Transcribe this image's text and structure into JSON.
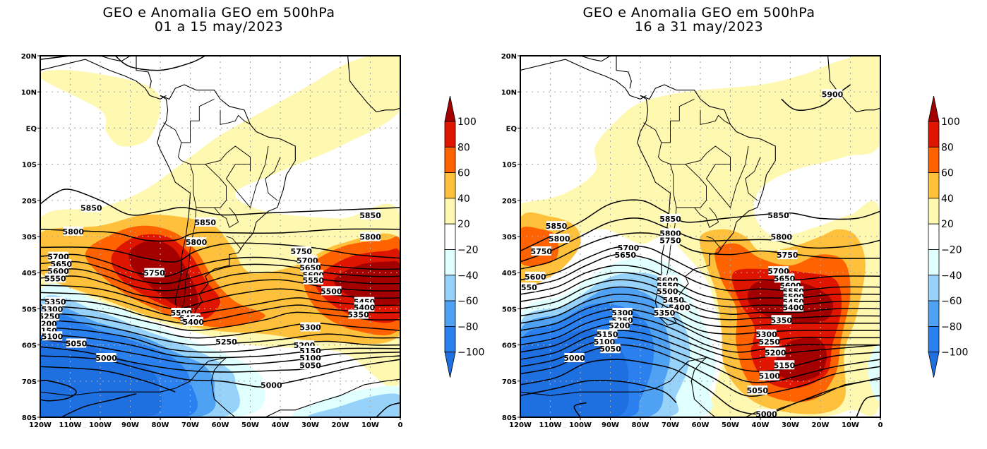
{
  "figure": {
    "panels": [
      {
        "id": "left",
        "title_line1": "GEO e Anomalia GEO em 500hPa",
        "title_line2": "01 a 15 may/2023"
      },
      {
        "id": "right",
        "title_line1": "GEO e Anomalia GEO em 500hPa",
        "title_line2": "16 a 31 may/2023"
      }
    ]
  },
  "chart_data": [
    {
      "type": "heatmap",
      "subtype": "filled-contour map with overlaid line contours",
      "title": "GEO e Anomalia GEO em 500hPa",
      "subtitle": "01 a 15 may/2023",
      "xlabel": "",
      "ylabel": "",
      "x_ticks": [
        "120W",
        "110W",
        "100W",
        "90W",
        "80W",
        "70W",
        "60W",
        "50W",
        "40W",
        "30W",
        "20W",
        "10W",
        "0"
      ],
      "y_ticks": [
        "20N",
        "10N",
        "EQ",
        "10S",
        "20S",
        "30S",
        "40S",
        "50S",
        "60S",
        "70S",
        "80S"
      ],
      "xlim": [
        -120,
        0
      ],
      "ylim": [
        -80,
        20
      ],
      "grid": true,
      "shaded_variable": "Geopotential height anomaly (m)",
      "contour_variable": "Geopotential height (m)",
      "contour_levels_labeled": [
        5850,
        5800,
        5750,
        5700,
        5650,
        5600,
        5550,
        5500,
        5450,
        5400,
        5350,
        5300,
        5250,
        5200,
        5150,
        5100,
        5050,
        5000
      ],
      "anomaly_features": [
        {
          "name": "positive max over southern Chile / SE Pacific",
          "lon": -80,
          "lat": -40,
          "anomaly": ">100"
        },
        {
          "name": "positive max over South Atlantic",
          "lon": -10,
          "lat": -42,
          "anomaly": ">100"
        },
        {
          "name": "negative min over SE Pacific / Amundsen Sea",
          "lon": -100,
          "lat": -65,
          "anomaly": "<-80"
        },
        {
          "name": "weak positive over tropical South America / Atlantic",
          "lon": -45,
          "lat": -5,
          "anomaly": "20 to 40"
        }
      ],
      "colorbar": {
        "levels": [
          -100,
          -80,
          -60,
          -40,
          -20,
          20,
          40,
          60,
          80,
          100
        ],
        "colors": [
          "#1e6fe0",
          "#2b80ef",
          "#4fa1f4",
          "#96d2fa",
          "#e0ffff",
          "#ffffff",
          "#fff8b0",
          "#ffc13c",
          "#ff6200",
          "#e01500",
          "#a50000"
        ],
        "extend": "both",
        "placement": "right"
      }
    },
    {
      "type": "heatmap",
      "subtype": "filled-contour map with overlaid line contours",
      "title": "GEO e Anomalia GEO em 500hPa",
      "subtitle": "16 a 31 may/2023",
      "xlabel": "",
      "ylabel": "",
      "x_ticks": [
        "120W",
        "110W",
        "100W",
        "90W",
        "80W",
        "70W",
        "60W",
        "50W",
        "40W",
        "30W",
        "20W",
        "10W",
        "0"
      ],
      "y_ticks": [
        "20N",
        "10N",
        "EQ",
        "10S",
        "20S",
        "30S",
        "40S",
        "50S",
        "60S",
        "70S",
        "80S"
      ],
      "xlim": [
        -120,
        0
      ],
      "ylim": [
        -80,
        20
      ],
      "grid": true,
      "shaded_variable": "Geopotential height anomaly (m)",
      "contour_variable": "Geopotential height (m)",
      "contour_levels_labeled": [
        5900,
        5850,
        5800,
        5750,
        5700,
        5650,
        5600,
        5550,
        5500,
        5450,
        5400,
        5350,
        5300,
        5250,
        5200,
        5150,
        5100,
        5050,
        5000
      ],
      "anomaly_features": [
        {
          "name": "positive max over South Atlantic",
          "lon": -28,
          "lat": -48,
          "anomaly": ">100"
        },
        {
          "name": "positive max extending to Weddell Sea",
          "lon": -25,
          "lat": -65,
          "anomaly": ">100"
        },
        {
          "name": "positive over SE Pacific",
          "lon": -115,
          "lat": -30,
          "anomaly": "60 to 80"
        },
        {
          "name": "negative min over SE Pacific / Drake Passage",
          "lon": -95,
          "lat": -62,
          "anomaly": "-80 to -100"
        },
        {
          "name": "weak positive over tropical South America / Atlantic",
          "lon": -50,
          "lat": 0,
          "anomaly": "20 to 40"
        }
      ],
      "colorbar": {
        "levels": [
          -100,
          -80,
          -60,
          -40,
          -20,
          20,
          40,
          60,
          80,
          100
        ],
        "colors": [
          "#1e6fe0",
          "#2b80ef",
          "#4fa1f4",
          "#96d2fa",
          "#e0ffff",
          "#ffffff",
          "#fff8b0",
          "#ffc13c",
          "#ff6200",
          "#e01500",
          "#a50000"
        ],
        "extend": "both",
        "placement": "right"
      }
    }
  ]
}
